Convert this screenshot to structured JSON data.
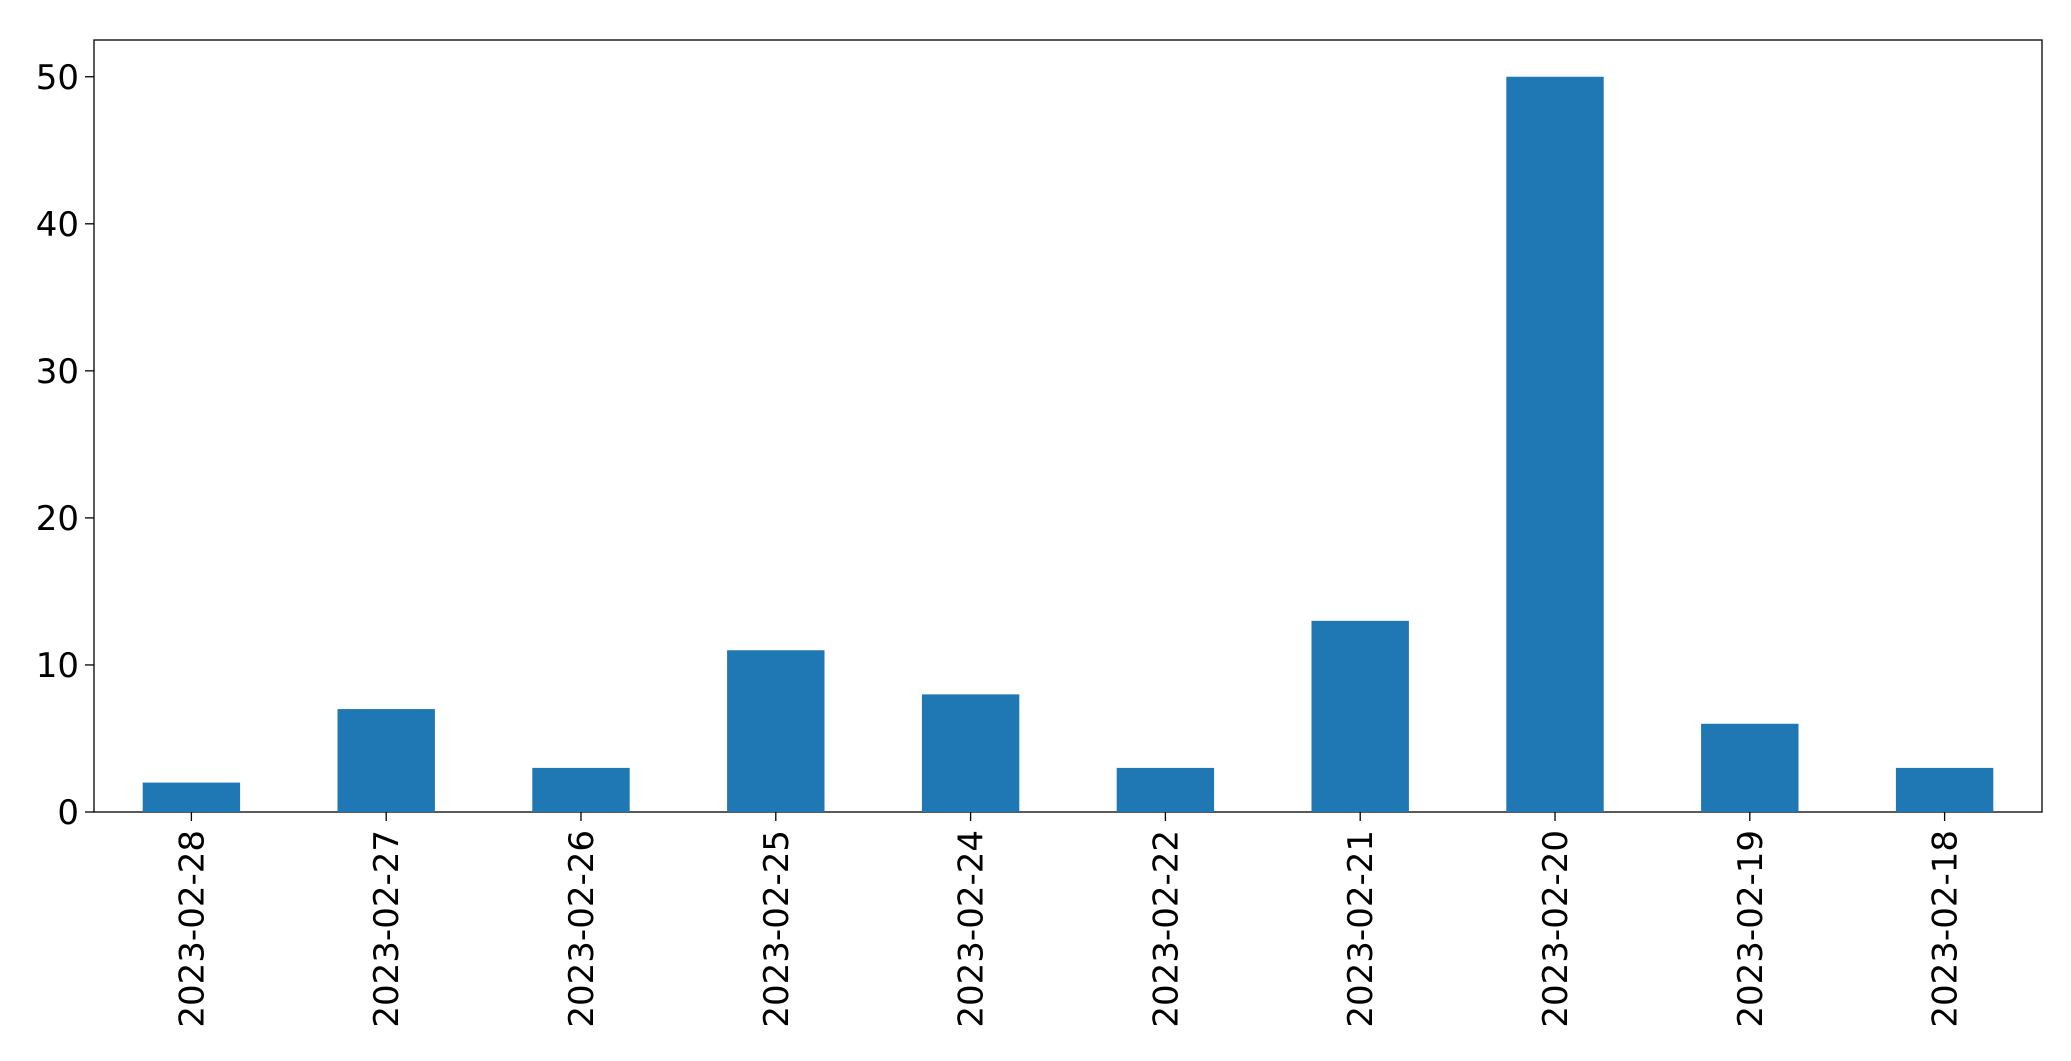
{
  "chart_data": {
    "type": "bar",
    "categories": [
      "2023-02-28",
      "2023-02-27",
      "2023-02-26",
      "2023-02-25",
      "2023-02-24",
      "2023-02-22",
      "2023-02-21",
      "2023-02-20",
      "2023-02-19",
      "2023-02-18"
    ],
    "values": [
      2,
      7,
      3,
      11,
      8,
      3,
      13,
      50,
      6,
      3
    ],
    "color": "#1f77b4",
    "ylim": [
      0,
      52.5
    ],
    "yticks": [
      0,
      10,
      20,
      30,
      40,
      50
    ],
    "grid": false
  }
}
